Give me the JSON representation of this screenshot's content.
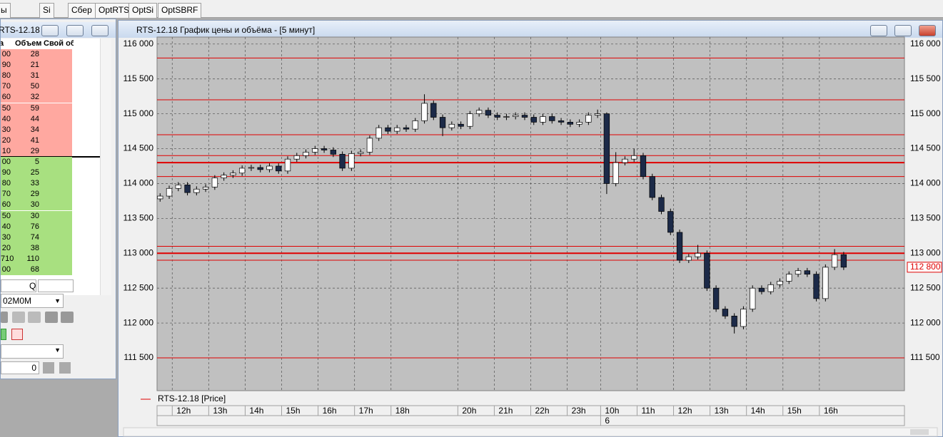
{
  "tabs": [
    "ы",
    "Si",
    "Сбер",
    "OptRTS",
    "OptSi",
    "OptSBRF"
  ],
  "order_book": {
    "title": "RTS-12.18 ...",
    "columns": [
      "а",
      "Объем",
      "Свой об"
    ],
    "asks": [
      {
        "price": "00",
        "volume": 28
      },
      {
        "price": "90",
        "volume": 21
      },
      {
        "price": "80",
        "volume": 31
      },
      {
        "price": "70",
        "volume": 50
      },
      {
        "price": "60",
        "volume": 32
      },
      {
        "price": "50",
        "volume": 59
      },
      {
        "price": "40",
        "volume": 44
      },
      {
        "price": "30",
        "volume": 34
      },
      {
        "price": "20",
        "volume": 41
      },
      {
        "price": "10",
        "volume": 29
      }
    ],
    "bids": [
      {
        "price": "00",
        "volume": 5
      },
      {
        "price": "90",
        "volume": 25
      },
      {
        "price": "80",
        "volume": 33
      },
      {
        "price": "70",
        "volume": 29
      },
      {
        "price": "60",
        "volume": 30
      },
      {
        "price": "50",
        "volume": 30
      },
      {
        "price": "40",
        "volume": 76
      },
      {
        "price": "30",
        "volume": 74
      },
      {
        "price": "20",
        "volume": 38
      },
      {
        "price": "710",
        "volume": 110
      },
      {
        "price": "00",
        "volume": 68
      }
    ],
    "search_label": "Q",
    "account": "02M0M",
    "quantity": "0"
  },
  "window_title": "RTS-12.18 График цены и объёма - [5 минут]",
  "chart_data": {
    "type": "candlestick",
    "legend": "RTS-12.18 [Price]",
    "up_color": "#ffffff",
    "down_color": "#1c2a48",
    "level_color": "#e00000",
    "grid": true,
    "x": [
      1,
      4,
      7,
      10,
      13,
      16,
      19,
      22,
      25,
      28,
      31,
      34,
      37,
      40,
      43,
      46,
      49,
      52,
      55,
      58,
      61,
      64,
      67,
      70,
      73,
      76,
      79,
      82,
      85,
      88,
      91,
      94,
      97,
      100,
      103,
      106,
      109,
      112,
      115,
      118,
      121,
      124,
      127,
      130,
      133,
      136,
      139,
      142,
      145,
      148,
      151,
      154,
      157,
      160,
      163,
      166,
      169,
      172,
      175,
      178,
      181,
      184,
      187,
      190,
      193,
      196,
      199,
      202,
      205,
      208,
      211,
      214,
      217,
      220,
      223,
      226
    ],
    "open": [
      113780,
      113820,
      113930,
      113980,
      113870,
      113920,
      113950,
      114080,
      114120,
      114150,
      114220,
      114230,
      114200,
      114250,
      114180,
      114350,
      114400,
      114450,
      114500,
      114480,
      114420,
      114220,
      114430,
      114450,
      114650,
      114800,
      114750,
      114800,
      114780,
      114900,
      115150,
      114950,
      114800,
      114850,
      114820,
      115000,
      115050,
      114980,
      114950,
      114960,
      114980,
      114950,
      114880,
      114960,
      114900,
      114880,
      114850,
      114880,
      114980,
      115000,
      114000,
      114300,
      114350,
      114400,
      114100,
      113800,
      113600,
      113300,
      112900,
      112950,
      113000,
      112500,
      112200,
      112100,
      111950,
      112200,
      112500,
      112450,
      112550,
      112600,
      112700,
      112750,
      112700,
      112350,
      112800,
      112980
    ],
    "high": [
      113860,
      113970,
      114020,
      114020,
      113960,
      113990,
      114120,
      114160,
      114190,
      114260,
      114270,
      114270,
      114290,
      114290,
      114390,
      114440,
      114490,
      114540,
      114540,
      114520,
      114460,
      114470,
      114490,
      114690,
      114840,
      114840,
      114840,
      114840,
      114940,
      115280,
      115190,
      114990,
      114890,
      114890,
      115040,
      115090,
      115090,
      115020,
      115000,
      115020,
      115020,
      114990,
      115000,
      115000,
      114940,
      114920,
      114920,
      115020,
      115060,
      115020,
      114450,
      114390,
      114500,
      114440,
      114140,
      113840,
      113640,
      113340,
      112990,
      113120,
      113040,
      112540,
      112240,
      112140,
      112240,
      112540,
      112540,
      112590,
      112640,
      112740,
      112790,
      112790,
      112740,
      112840,
      113060,
      113020
    ],
    "low": [
      113740,
      113780,
      113890,
      113830,
      113830,
      113880,
      113910,
      114040,
      114080,
      114110,
      114180,
      114160,
      114160,
      114140,
      114140,
      114310,
      114360,
      114410,
      114440,
      114380,
      114180,
      114180,
      114390,
      114410,
      114610,
      114710,
      114710,
      114740,
      114740,
      114860,
      114910,
      114680,
      114760,
      114780,
      114780,
      114960,
      114940,
      114910,
      114910,
      114920,
      114910,
      114840,
      114840,
      114860,
      114840,
      114810,
      114810,
      114840,
      114940,
      113850,
      113960,
      114260,
      114310,
      114060,
      113760,
      113560,
      113260,
      112860,
      112860,
      112910,
      112460,
      112160,
      112060,
      111850,
      111910,
      112160,
      112410,
      112410,
      112510,
      112560,
      112660,
      112660,
      112310,
      112310,
      112760,
      112760
    ],
    "close": [
      113820,
      113930,
      113980,
      113870,
      113920,
      113950,
      114080,
      114120,
      114150,
      114220,
      114230,
      114200,
      114250,
      114180,
      114350,
      114400,
      114450,
      114500,
      114480,
      114420,
      114220,
      114430,
      114450,
      114650,
      114800,
      114750,
      114800,
      114780,
      114900,
      115150,
      114950,
      114800,
      114850,
      114820,
      115000,
      115050,
      114980,
      114950,
      114960,
      114980,
      114950,
      114880,
      114960,
      114900,
      114880,
      114850,
      114880,
      114980,
      115000,
      114000,
      114300,
      114350,
      114400,
      114100,
      113800,
      113600,
      113300,
      112900,
      112950,
      113000,
      112500,
      112200,
      112100,
      111950,
      112200,
      112500,
      112450,
      112550,
      112600,
      112700,
      112750,
      112700,
      112350,
      112800,
      112980,
      112800
    ],
    "xlim": [
      0,
      246
    ],
    "xticks": [
      {
        "value": 5,
        "label": "12h"
      },
      {
        "value": 17,
        "label": "13h"
      },
      {
        "value": 29,
        "label": "14h"
      },
      {
        "value": 41,
        "label": "15h"
      },
      {
        "value": 53,
        "label": "16h"
      },
      {
        "value": 65,
        "label": "17h"
      },
      {
        "value": 77,
        "label": "18h"
      },
      {
        "value": 99,
        "label": "20h"
      },
      {
        "value": 111,
        "label": "21h"
      },
      {
        "value": 123,
        "label": "22h"
      },
      {
        "value": 135,
        "label": "23h"
      },
      {
        "value": 146,
        "label": "10h"
      },
      {
        "value": 158,
        "label": "11h"
      },
      {
        "value": 170,
        "label": "12h"
      },
      {
        "value": 182,
        "label": "13h"
      },
      {
        "value": 194,
        "label": "14h"
      },
      {
        "value": 206,
        "label": "15h"
      },
      {
        "value": 218,
        "label": "16h"
      }
    ],
    "date_ticks": [
      {
        "value": 146,
        "label": "6"
      }
    ],
    "ylim": [
      111030,
      116100
    ],
    "yticks": [
      {
        "value": 111500,
        "label": "111 500"
      },
      {
        "value": 112000,
        "label": "112 000"
      },
      {
        "value": 112500,
        "label": "112 500"
      },
      {
        "value": 113000,
        "label": "113 000"
      },
      {
        "value": 113500,
        "label": "113 500"
      },
      {
        "value": 114000,
        "label": "114 000"
      },
      {
        "value": 114500,
        "label": "114 500"
      },
      {
        "value": 115000,
        "label": "115 000"
      },
      {
        "value": 115500,
        "label": "115 500"
      },
      {
        "value": 116000,
        "label": "116 000"
      }
    ],
    "levels": [
      {
        "value": 115800,
        "width": 1
      },
      {
        "value": 115200,
        "width": 1
      },
      {
        "value": 114700,
        "width": 1
      },
      {
        "value": 114400,
        "width": 1
      },
      {
        "value": 114300,
        "width": 2
      },
      {
        "value": 114100,
        "width": 1
      },
      {
        "value": 113100,
        "width": 1
      },
      {
        "value": 113000,
        "width": 2
      },
      {
        "value": 112900,
        "width": 1
      },
      {
        "value": 111500,
        "width": 1
      }
    ],
    "last_price": {
      "value": 112800,
      "label": "112 800"
    }
  }
}
